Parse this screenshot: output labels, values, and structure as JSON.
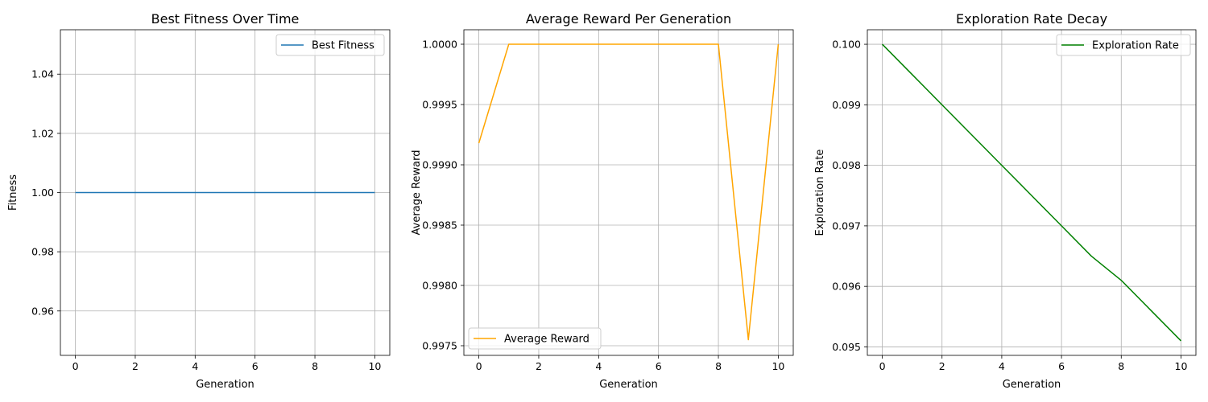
{
  "chart_data": [
    {
      "type": "line",
      "title": "Best Fitness Over Time",
      "xlabel": "Generation",
      "ylabel": "Fitness",
      "xlim": [
        -0.5,
        10.5
      ],
      "ylim": [
        0.945,
        1.055
      ],
      "xticks": [
        0,
        2,
        4,
        6,
        8,
        10
      ],
      "yticks": [
        0.96,
        0.98,
        1.0,
        1.02,
        1.04
      ],
      "ytick_decimals": 2,
      "grid": true,
      "legend": "top-right",
      "series": [
        {
          "name": "Best Fitness",
          "color": "#1f77b4",
          "x": [
            0,
            1,
            2,
            3,
            4,
            5,
            6,
            7,
            8,
            9,
            10
          ],
          "y": [
            1.0,
            1.0,
            1.0,
            1.0,
            1.0,
            1.0,
            1.0,
            1.0,
            1.0,
            1.0,
            1.0
          ]
        }
      ]
    },
    {
      "type": "line",
      "title": "Average Reward Per Generation",
      "xlabel": "Generation",
      "ylabel": "Average Reward",
      "xlim": [
        -0.5,
        10.5
      ],
      "ylim": [
        0.99742,
        1.00012
      ],
      "xticks": [
        0,
        2,
        4,
        6,
        8,
        10
      ],
      "yticks": [
        0.9975,
        0.998,
        0.9985,
        0.999,
        0.9995,
        1.0
      ],
      "ytick_decimals": 4,
      "grid": true,
      "legend": "bottom-left",
      "series": [
        {
          "name": "Average Reward",
          "color": "#ffa500",
          "x": [
            0,
            1,
            2,
            3,
            4,
            5,
            6,
            7,
            8,
            9,
            10
          ],
          "y": [
            0.99918,
            1.0,
            1.0,
            1.0,
            1.0,
            1.0,
            1.0,
            1.0,
            1.0,
            0.99755,
            1.0
          ]
        }
      ]
    },
    {
      "type": "line",
      "title": "Exploration Rate Decay",
      "xlabel": "Generation",
      "ylabel": "Exploration Rate",
      "xlim": [
        -0.5,
        10.5
      ],
      "ylim": [
        0.09486,
        0.10024
      ],
      "xticks": [
        0,
        2,
        4,
        6,
        8,
        10
      ],
      "yticks": [
        0.095,
        0.096,
        0.097,
        0.098,
        0.099,
        0.1
      ],
      "ytick_decimals": 3,
      "grid": true,
      "legend": "top-right",
      "series": [
        {
          "name": "Exploration Rate",
          "color": "#008000",
          "x": [
            0,
            1,
            2,
            3,
            4,
            5,
            6,
            7,
            8,
            9,
            10
          ],
          "y": [
            0.1,
            0.0995,
            0.099,
            0.0985,
            0.098,
            0.0975,
            0.097,
            0.0965,
            0.0961,
            0.0956,
            0.0951
          ]
        }
      ]
    }
  ]
}
